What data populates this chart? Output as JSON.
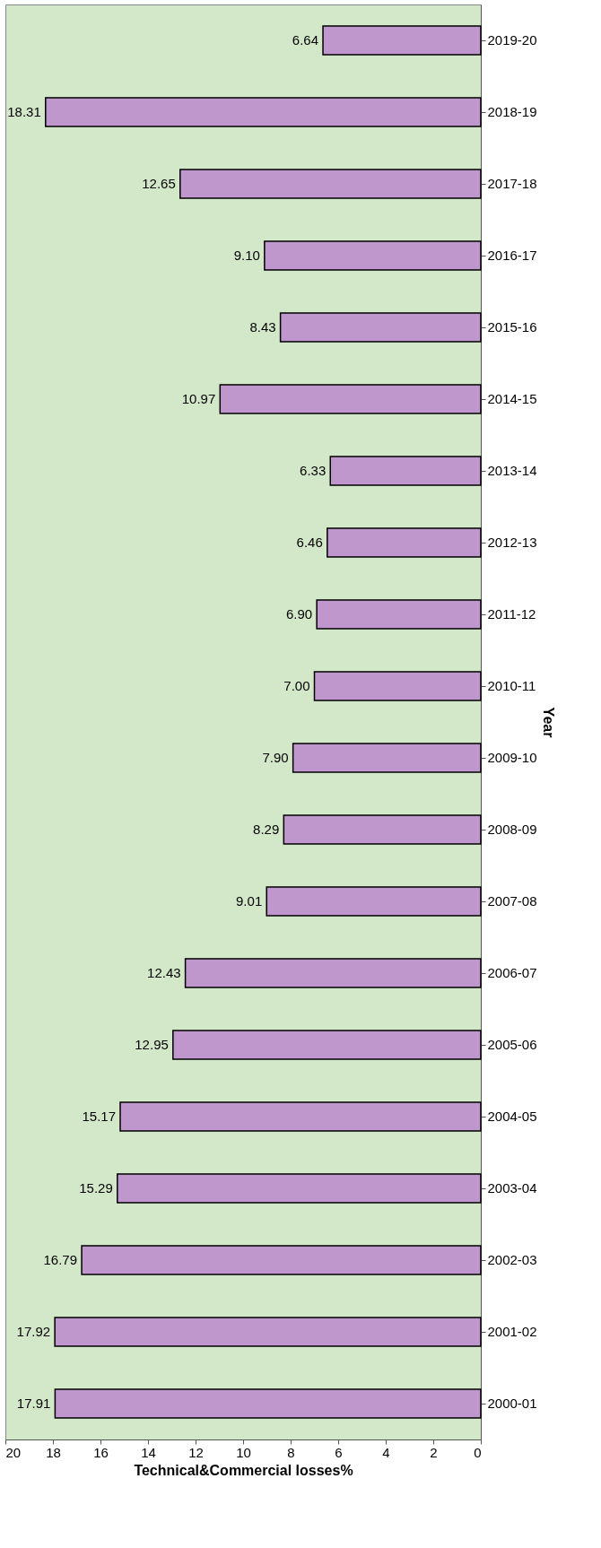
{
  "chart_data": {
    "type": "bar",
    "orientation": "horizontal",
    "xlabel": "Technical&Commercial losses%",
    "ylabel": "Year",
    "categories": [
      "2019-20",
      "2018-19",
      "2017-18",
      "2016-17",
      "2015-16",
      "2014-15",
      "2013-14",
      "2012-13",
      "2011-12",
      "2010-11",
      "2009-10",
      "2008-09",
      "2007-08",
      "2006-07",
      "2005-06",
      "2004-05",
      "2003-04",
      "2002-03",
      "2001-02",
      "2000-01"
    ],
    "values": [
      6.64,
      18.31,
      12.65,
      9.1,
      8.43,
      10.97,
      6.33,
      6.46,
      6.9,
      7.0,
      7.9,
      8.29,
      9.01,
      12.43,
      12.95,
      15.17,
      15.29,
      16.79,
      17.92,
      17.91
    ],
    "value_labels": [
      "6.64",
      "18.31",
      "12.65",
      "9.10",
      "8.43",
      "10.97",
      "6.33",
      "6.46",
      "6.90",
      "7.00",
      "7.90",
      "8.29",
      "9.01",
      "12.43",
      "12.95",
      "15.17",
      "15.29",
      "16.79",
      "17.92",
      "17.91"
    ],
    "color": "#bf97cc",
    "xlim": [
      20,
      0
    ],
    "xticks": [
      0,
      2,
      4,
      6,
      8,
      10,
      12,
      14,
      16,
      18,
      20
    ],
    "grid": false
  }
}
